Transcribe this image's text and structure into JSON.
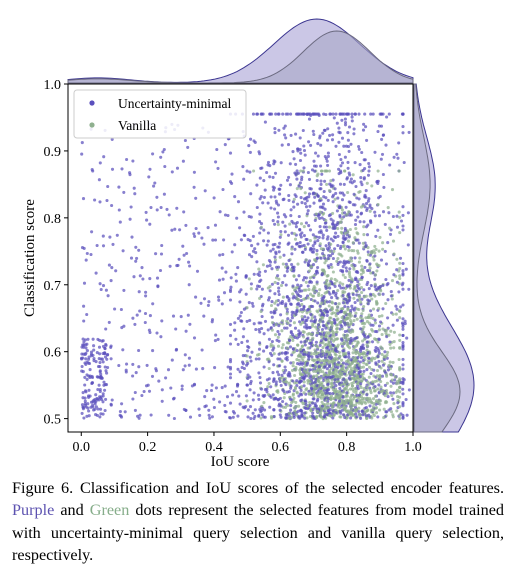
{
  "chart_data": {
    "type": "scatter",
    "xlabel": "IoU score",
    "ylabel": "Classification score",
    "xlim": [
      -0.04,
      1.0
    ],
    "ylim": [
      0.48,
      1.0
    ],
    "x_ticks": [
      "0.0",
      "0.2",
      "0.4",
      "0.6",
      "0.8",
      "1.0"
    ],
    "y_ticks": [
      "0.5",
      "0.6",
      "0.7",
      "0.8",
      "0.9",
      "1.0"
    ],
    "legend_position": "top-left",
    "grid": false,
    "marginal_density": {
      "top": "IoU score",
      "right": "Classification score"
    },
    "series": [
      {
        "name": "Uncertainty-minimal",
        "color": "#5a4fbd",
        "point_count_approx": 2200,
        "x_range": [
          0.0,
          1.0
        ],
        "y_range": [
          0.5,
          0.96
        ],
        "x_density_peak": 0.7,
        "note_dense_region": {
          "x": [
            0.55,
            0.9
          ],
          "y": [
            0.5,
            0.95
          ]
        }
      },
      {
        "name": "Vanilla",
        "color": "#8fb08f",
        "point_count_approx": 1500,
        "x_range": [
          0.5,
          0.95
        ],
        "y_range": [
          0.5,
          0.85
        ],
        "x_density_peak": 0.76,
        "note_dense_region": {
          "x": [
            0.65,
            0.92
          ],
          "y": [
            0.5,
            0.6
          ]
        }
      }
    ]
  },
  "caption": {
    "p1": "Figure 6.  Classification and IoU scores of the selected encoder features. ",
    "purple": "Purple",
    "p2": " and ",
    "green": "Green",
    "p3": " dots represent the selected features from model trained with uncertainty-minimal query selection and vanilla query selection, respectively."
  }
}
